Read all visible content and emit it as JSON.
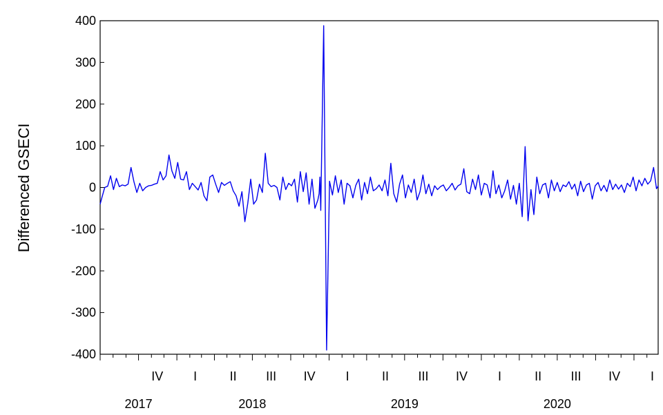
{
  "chart_data": {
    "type": "line",
    "title": "",
    "ylabel": "Differenced GSECI",
    "xlabel": "",
    "ylim": [
      -400,
      400
    ],
    "yticks": [
      400,
      300,
      200,
      100,
      0,
      -100,
      -200,
      -300,
      -400
    ],
    "ytick_labels": [
      "400",
      "300",
      "200",
      "100",
      "0",
      "-100",
      "-200",
      "-300",
      "-400"
    ],
    "x_range": [
      "2017-07-01",
      "2021-02-28"
    ],
    "quarter_labels": [
      {
        "label": "IV",
        "date": "2017-11-15"
      },
      {
        "label": "I",
        "date": "2018-02-14"
      },
      {
        "label": "II",
        "date": "2018-05-16"
      },
      {
        "label": "III",
        "date": "2018-08-15"
      },
      {
        "label": "IV",
        "date": "2018-11-15"
      },
      {
        "label": "I",
        "date": "2019-02-14"
      },
      {
        "label": "II",
        "date": "2019-05-16"
      },
      {
        "label": "III",
        "date": "2019-08-15"
      },
      {
        "label": "IV",
        "date": "2019-11-15"
      },
      {
        "label": "I",
        "date": "2020-02-14"
      },
      {
        "label": "II",
        "date": "2020-05-16"
      },
      {
        "label": "III",
        "date": "2020-08-15"
      },
      {
        "label": "IV",
        "date": "2020-11-15"
      },
      {
        "label": "I",
        "date": "2021-02-14"
      }
    ],
    "year_labels": [
      {
        "label": "2017",
        "date": "2017-10-01"
      },
      {
        "label": "2018",
        "date": "2018-07-01"
      },
      {
        "label": "2019",
        "date": "2019-07-01"
      },
      {
        "label": "2020",
        "date": "2020-07-01"
      }
    ],
    "grid": false,
    "legend": "none",
    "series": [
      {
        "color": "#0000ee",
        "x": [
          "2017-07-01",
          "2017-07-05",
          "2017-07-12",
          "2017-07-19",
          "2017-07-26",
          "2017-08-02",
          "2017-08-09",
          "2017-08-16",
          "2017-08-23",
          "2017-08-30",
          "2017-09-06",
          "2017-09-13",
          "2017-09-20",
          "2017-09-27",
          "2017-10-04",
          "2017-10-11",
          "2017-10-18",
          "2017-10-25",
          "2017-11-01",
          "2017-11-08",
          "2017-11-15",
          "2017-11-22",
          "2017-11-29",
          "2017-12-06",
          "2017-12-13",
          "2017-12-20",
          "2017-12-27",
          "2018-01-03",
          "2018-01-10",
          "2018-01-17",
          "2018-01-24",
          "2018-01-31",
          "2018-02-07",
          "2018-02-14",
          "2018-02-21",
          "2018-02-28",
          "2018-03-07",
          "2018-03-14",
          "2018-03-21",
          "2018-03-28",
          "2018-04-04",
          "2018-04-11",
          "2018-04-18",
          "2018-04-25",
          "2018-05-02",
          "2018-05-09",
          "2018-05-16",
          "2018-05-23",
          "2018-05-30",
          "2018-06-06",
          "2018-06-13",
          "2018-06-20",
          "2018-06-27",
          "2018-07-04",
          "2018-07-11",
          "2018-07-18",
          "2018-07-25",
          "2018-08-01",
          "2018-08-08",
          "2018-08-15",
          "2018-08-22",
          "2018-08-29",
          "2018-09-05",
          "2018-09-12",
          "2018-09-19",
          "2018-09-26",
          "2018-10-03",
          "2018-10-10",
          "2018-10-17",
          "2018-10-24",
          "2018-10-31",
          "2018-11-07",
          "2018-11-14",
          "2018-11-21",
          "2018-11-28",
          "2018-12-05",
          "2018-12-08",
          "2018-12-10",
          "2018-12-12",
          "2018-12-19",
          "2018-12-26",
          "2019-01-02",
          "2019-01-09",
          "2019-01-16",
          "2019-01-23",
          "2019-01-30",
          "2019-02-06",
          "2019-02-13",
          "2019-02-20",
          "2019-02-27",
          "2019-03-06",
          "2019-03-13",
          "2019-03-20",
          "2019-03-27",
          "2019-04-03",
          "2019-04-10",
          "2019-04-17",
          "2019-04-24",
          "2019-05-01",
          "2019-05-08",
          "2019-05-15",
          "2019-05-22",
          "2019-05-29",
          "2019-06-05",
          "2019-06-12",
          "2019-06-19",
          "2019-06-26",
          "2019-07-03",
          "2019-07-10",
          "2019-07-17",
          "2019-07-24",
          "2019-07-31",
          "2019-08-07",
          "2019-08-14",
          "2019-08-21",
          "2019-08-28",
          "2019-09-04",
          "2019-09-11",
          "2019-09-18",
          "2019-09-25",
          "2019-10-02",
          "2019-10-09",
          "2019-10-16",
          "2019-10-23",
          "2019-10-30",
          "2019-11-06",
          "2019-11-13",
          "2019-11-20",
          "2019-11-27",
          "2019-12-04",
          "2019-12-11",
          "2019-12-18",
          "2019-12-25",
          "2020-01-01",
          "2020-01-08",
          "2020-01-15",
          "2020-01-22",
          "2020-01-29",
          "2020-02-05",
          "2020-02-12",
          "2020-02-19",
          "2020-02-26",
          "2020-03-04",
          "2020-03-11",
          "2020-03-18",
          "2020-03-25",
          "2020-04-01",
          "2020-04-08",
          "2020-04-15",
          "2020-04-22",
          "2020-04-29",
          "2020-05-06",
          "2020-05-13",
          "2020-05-20",
          "2020-05-27",
          "2020-06-03",
          "2020-06-10",
          "2020-06-17",
          "2020-06-24",
          "2020-07-01",
          "2020-07-08",
          "2020-07-15",
          "2020-07-22",
          "2020-07-29",
          "2020-08-05",
          "2020-08-12",
          "2020-08-19",
          "2020-08-26",
          "2020-09-02",
          "2020-09-09",
          "2020-09-16",
          "2020-09-23",
          "2020-09-30",
          "2020-10-07",
          "2020-10-14",
          "2020-10-21",
          "2020-10-28",
          "2020-11-04",
          "2020-11-11",
          "2020-11-18",
          "2020-11-25",
          "2020-12-02",
          "2020-12-09",
          "2020-12-16",
          "2020-12-23",
          "2020-12-30",
          "2021-01-06",
          "2021-01-13",
          "2021-01-20",
          "2021-01-27",
          "2021-02-03",
          "2021-02-10",
          "2021-02-17",
          "2021-02-24",
          "2021-02-28"
        ],
        "y": [
          -40,
          -25,
          0,
          3,
          28,
          -5,
          22,
          2,
          6,
          4,
          8,
          48,
          14,
          -12,
          10,
          -8,
          0,
          4,
          5,
          8,
          10,
          38,
          18,
          28,
          78,
          40,
          22,
          60,
          20,
          18,
          38,
          -5,
          10,
          2,
          -6,
          12,
          -20,
          -32,
          25,
          30,
          8,
          -12,
          12,
          5,
          10,
          14,
          -8,
          -20,
          -45,
          -10,
          -82,
          -38,
          20,
          -40,
          -30,
          8,
          -12,
          82,
          10,
          2,
          5,
          0,
          -30,
          25,
          -5,
          10,
          4,
          20,
          -35,
          38,
          -10,
          35,
          -40,
          20,
          -50,
          -30,
          -15,
          25,
          -55,
          388,
          -390,
          15,
          -18,
          28,
          -12,
          18,
          -40,
          10,
          4,
          -25,
          5,
          20,
          -30,
          12,
          -15,
          25,
          -8,
          -3,
          6,
          -8,
          18,
          -20,
          58,
          -15,
          -35,
          8,
          30,
          -25,
          6,
          -12,
          20,
          -30,
          -10,
          30,
          -15,
          8,
          -20,
          4,
          -5,
          2,
          6,
          -8,
          0,
          10,
          -6,
          4,
          8,
          45,
          -10,
          -15,
          20,
          -5,
          30,
          -18,
          10,
          6,
          -25,
          40,
          -15,
          6,
          -25,
          -8,
          18,
          -28,
          5,
          -40,
          10,
          -70,
          98,
          -80,
          -5,
          -65,
          25,
          -15,
          6,
          10,
          -25,
          18,
          -8,
          12,
          -10,
          6,
          2,
          14,
          -4,
          8,
          -20,
          15,
          -10,
          6,
          10,
          -28,
          4,
          12,
          -8,
          5,
          -10,
          18,
          -5,
          8,
          -4,
          6,
          -12,
          10,
          2,
          25,
          -8,
          18,
          4,
          22,
          8,
          16,
          48,
          -3,
          4
        ]
      }
    ]
  }
}
